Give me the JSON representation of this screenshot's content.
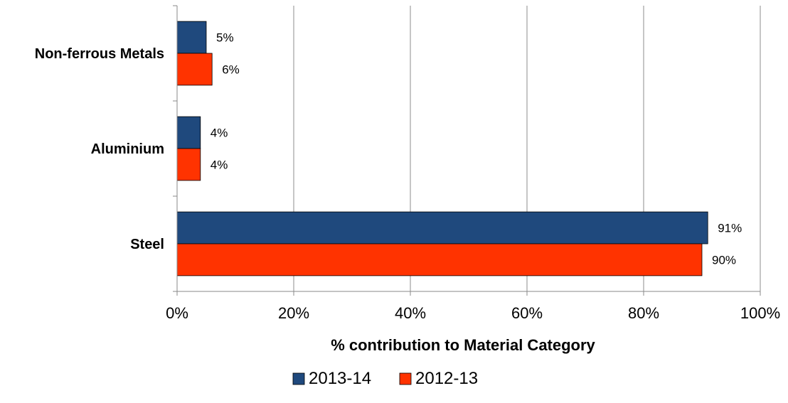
{
  "chart_data": {
    "type": "bar",
    "orientation": "horizontal",
    "categories": [
      "Non-ferrous Metals",
      "Aluminium",
      "Steel"
    ],
    "series": [
      {
        "name": "2013-14",
        "values": [
          5,
          4,
          91
        ],
        "labels": [
          "5%",
          "4%",
          "91%"
        ],
        "color": "#1f497d"
      },
      {
        "name": "2012-13",
        "values": [
          6,
          4,
          90
        ],
        "labels": [
          "6%",
          "4%",
          "90%"
        ],
        "color": "#ff3300"
      }
    ],
    "xlabel": "% contribution to Material Category",
    "xlim": [
      0,
      100
    ],
    "xticks": [
      "0%",
      "20%",
      "40%",
      "60%",
      "80%",
      "100%"
    ],
    "grid": "vertical",
    "legend": "bottom-center"
  }
}
